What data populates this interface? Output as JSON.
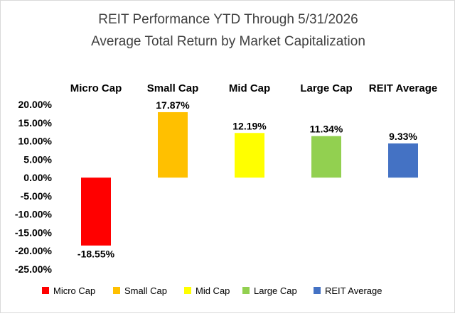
{
  "chart_data": {
    "type": "bar",
    "title": "REIT Performance YTD Through 5/31/2026",
    "subtitle": "Average Total Return by Market Capitalization",
    "categories": [
      "Micro Cap",
      "Small Cap",
      "Mid Cap",
      "Large Cap",
      "REIT Average"
    ],
    "values": [
      -18.55,
      17.87,
      12.19,
      11.34,
      9.33
    ],
    "data_labels": [
      "-18.55%",
      "17.87%",
      "12.19%",
      "11.34%",
      "9.33%"
    ],
    "colors": [
      "#ff0000",
      "#ffc000",
      "#ffff00",
      "#92d050",
      "#4472c4"
    ],
    "ylim": [
      -25,
      20
    ],
    "yticks": [
      20,
      15,
      10,
      5,
      0,
      -5,
      -10,
      -15,
      -20,
      -25
    ],
    "ytick_labels": [
      "20.00%",
      "15.00%",
      "10.00%",
      "5.00%",
      "0.00%",
      "-5.00%",
      "-10.00%",
      "-15.00%",
      "-20.00%",
      "-25.00%"
    ],
    "xlabel": "",
    "ylabel": "",
    "grid": false,
    "category_labels_position": "top",
    "legend": {
      "position": "bottom",
      "entries": [
        "Micro Cap",
        "Small Cap",
        "Mid Cap",
        "Large Cap",
        "REIT Average"
      ]
    }
  }
}
